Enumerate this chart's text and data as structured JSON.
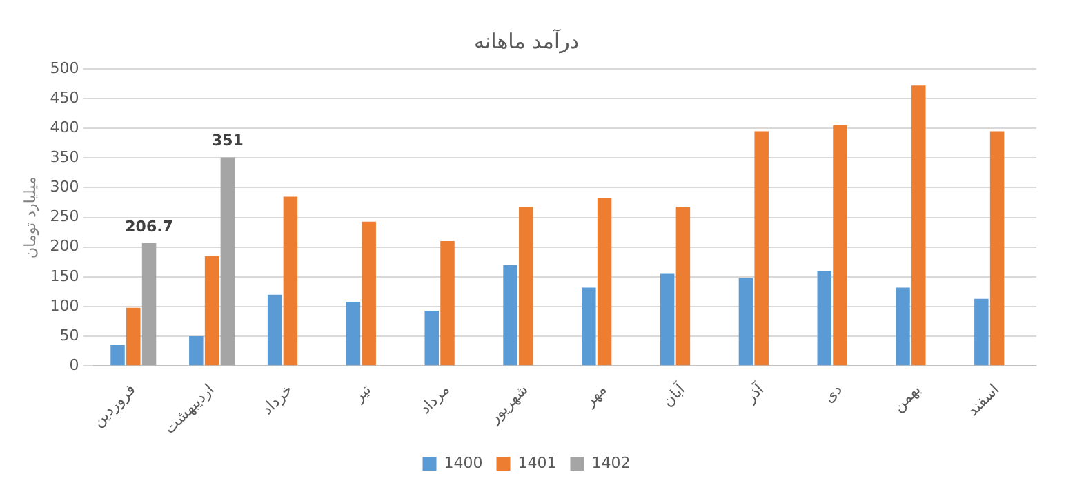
{
  "chart_data": {
    "type": "bar",
    "title": "درآمد ماهانه",
    "ylabel": "میلیارد تومان",
    "categories": [
      "فروردین",
      "اردیبهشت",
      "خرداد",
      "تیر",
      "مرداد",
      "شهریور",
      "مهر",
      "آبان",
      "آذر",
      "دی",
      "بهمن",
      "اسفند"
    ],
    "series": [
      {
        "name": "1400",
        "color": "#5b9bd5",
        "values": [
          35,
          50,
          120,
          108,
          93,
          170,
          132,
          155,
          148,
          160,
          132,
          113
        ]
      },
      {
        "name": "1401",
        "color": "#ed7d31",
        "values": [
          98,
          185,
          285,
          243,
          210,
          268,
          282,
          268,
          395,
          405,
          472,
          395
        ]
      },
      {
        "name": "1402",
        "color": "#a5a5a5",
        "values": [
          206.7,
          351,
          null,
          null,
          null,
          null,
          null,
          null,
          null,
          null,
          null,
          null
        ],
        "value_labels": [
          "206.7",
          "351",
          null,
          null,
          null,
          null,
          null,
          null,
          null,
          null,
          null,
          null
        ]
      }
    ],
    "ylim": [
      0,
      500
    ],
    "yticks": [
      0,
      50,
      100,
      150,
      200,
      250,
      300,
      350,
      400,
      450,
      500
    ],
    "grid": "y",
    "legend": "bottom"
  }
}
